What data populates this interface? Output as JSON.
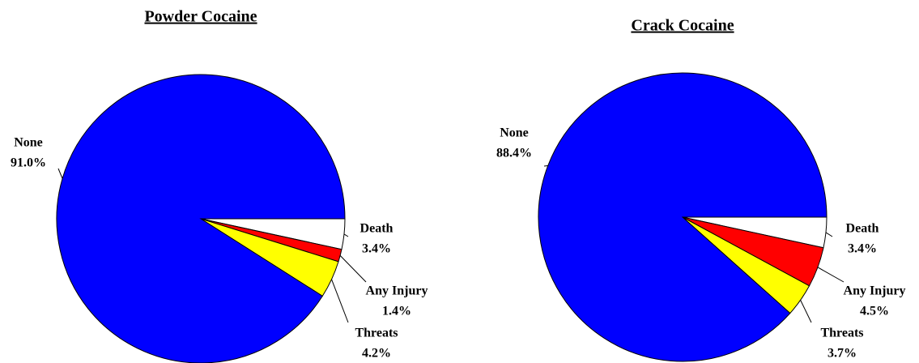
{
  "chart_data": [
    {
      "type": "pie",
      "title": "Powder Cocaine",
      "categories": [
        "Death",
        "Any Injury",
        "Threats",
        "None"
      ],
      "values": [
        3.4,
        1.4,
        4.2,
        91.0
      ],
      "value_labels": [
        "3.4%",
        "1.4%",
        "4.2%",
        "91.0%"
      ],
      "colors": [
        "#ffffff",
        "#ff0000",
        "#ffff00",
        "#0000ff"
      ]
    },
    {
      "type": "pie",
      "title": "Crack Cocaine",
      "categories": [
        "Death",
        "Any Injury",
        "Threats",
        "None"
      ],
      "values": [
        3.4,
        4.5,
        3.7,
        88.4
      ],
      "value_labels": [
        "3.4%",
        "4.5%",
        "3.7%",
        "88.4%"
      ],
      "colors": [
        "#ffffff",
        "#ff0000",
        "#ffff00",
        "#0000ff"
      ]
    }
  ]
}
